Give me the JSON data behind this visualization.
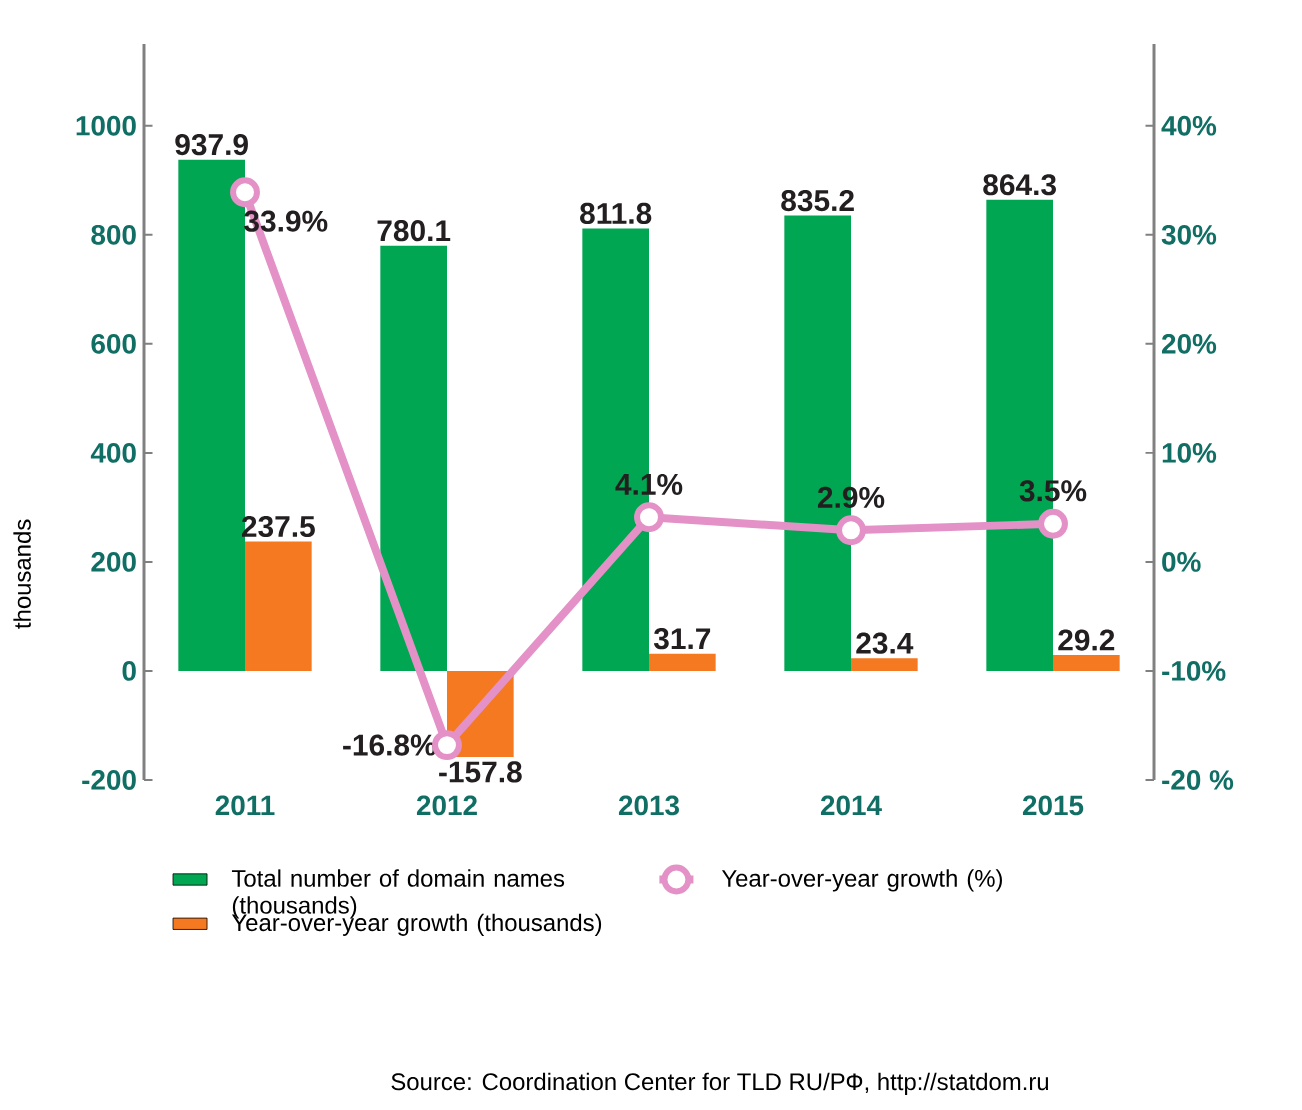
{
  "chart_data": {
    "type": "bar",
    "categories": [
      "2011",
      "2012",
      "2013",
      "2014",
      "2015"
    ],
    "ylabel": "thousands",
    "ylim": [
      -200,
      1150
    ],
    "yticks": [
      -200,
      0,
      200,
      400,
      600,
      800,
      1000
    ],
    "y2lim": [
      -20,
      47.5
    ],
    "y2ticks": [
      {
        "value": -20,
        "label": "-20 %"
      },
      {
        "value": -10,
        "label": "-10%"
      },
      {
        "value": 0,
        "label": "0%"
      },
      {
        "value": 10,
        "label": "10%"
      },
      {
        "value": 20,
        "label": "20%"
      },
      {
        "value": 30,
        "label": "30%"
      },
      {
        "value": 40,
        "label": "40%"
      }
    ],
    "legend": "bottom",
    "annotations": [
      "Source: Coordination Center for TLD RU/РФ, http://statdom.ru"
    ],
    "series": [
      {
        "name": "Total number of domain names (thousands)",
        "color": "#00a651",
        "values": [
          937.9,
          780.1,
          811.8,
          835.2,
          864.3
        ],
        "value_labels": [
          "937.9",
          "780.1",
          "811.8",
          "835.2",
          "864.3"
        ]
      },
      {
        "name": "Year-over-year growth (thousands)",
        "color": "#f47920",
        "values": [
          237.5,
          -157.8,
          31.7,
          23.4,
          29.2
        ],
        "value_labels": [
          "237.5",
          "-157.8",
          "31.7",
          "23.4",
          "29.2"
        ]
      },
      {
        "name": "Year-over-year growth (%)",
        "type": "line",
        "axis": "y2",
        "marker": "circle",
        "color": "#e391c6",
        "values": [
          33.9,
          -16.8,
          4.1,
          2.9,
          3.5
        ],
        "value_labels": [
          "33.9%",
          "-16.8%",
          "4.1%",
          "2.9%",
          "3.5%"
        ]
      }
    ]
  }
}
